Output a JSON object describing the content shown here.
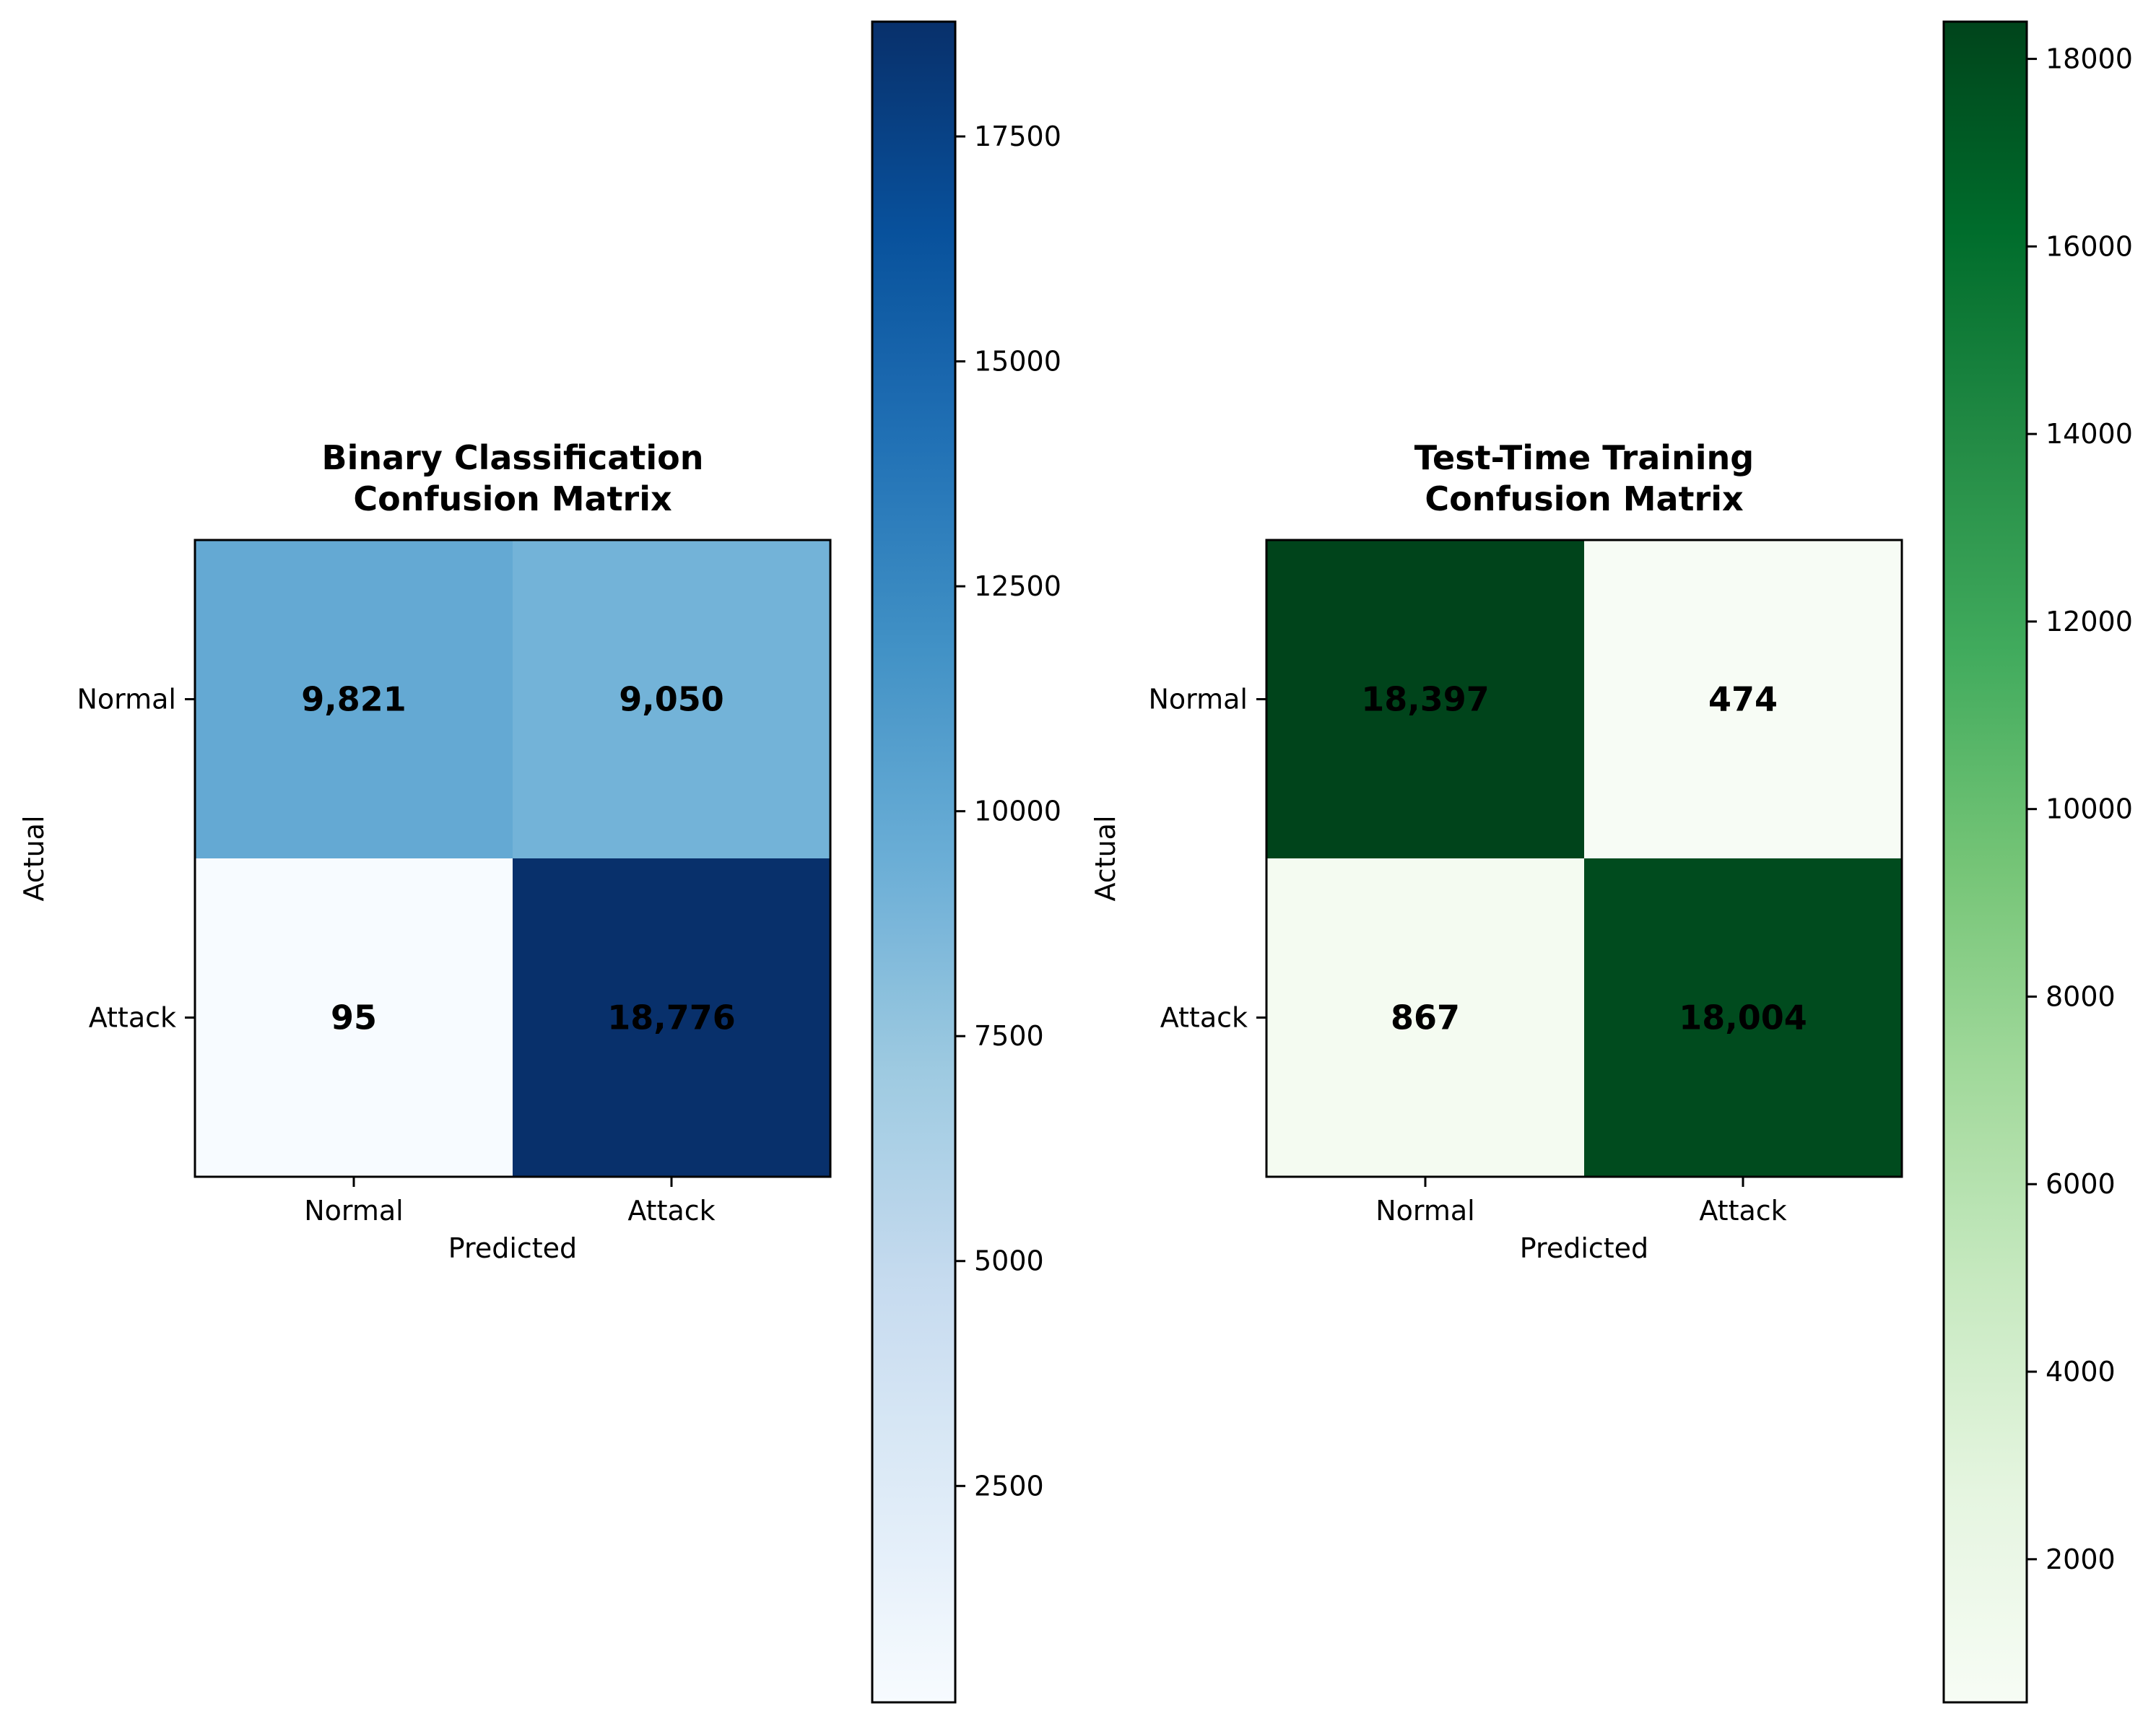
{
  "chart_data": [
    {
      "type": "heatmap",
      "title": "Binary Classification\nConfusion Matrix",
      "xlabel": "Predicted",
      "ylabel": "Actual",
      "x_categories": [
        "Normal",
        "Attack"
      ],
      "y_categories": [
        "Normal",
        "Attack"
      ],
      "values": [
        [
          9821,
          9050
        ],
        [
          95,
          18776
        ]
      ],
      "value_labels": [
        [
          "9,821",
          "9,050"
        ],
        [
          "95",
          "18,776"
        ]
      ],
      "colormap": "Blues",
      "color_low": "#f7fbff",
      "color_high": "#08306b",
      "colorbar_range": [
        95,
        18776
      ],
      "colorbar_ticks": [
        2500,
        5000,
        7500,
        10000,
        12500,
        15000,
        17500
      ]
    },
    {
      "type": "heatmap",
      "title": "Test-Time Training\nConfusion Matrix",
      "xlabel": "Predicted",
      "ylabel": "Actual",
      "x_categories": [
        "Normal",
        "Attack"
      ],
      "y_categories": [
        "Normal",
        "Attack"
      ],
      "values": [
        [
          18397,
          474
        ],
        [
          867,
          18004
        ]
      ],
      "value_labels": [
        [
          "18,397",
          "474"
        ],
        [
          "867",
          "18,004"
        ]
      ],
      "colormap": "Greens",
      "color_low": "#f7fcf5",
      "color_high": "#00441b",
      "colorbar_range": [
        474,
        18397
      ],
      "colorbar_ticks": [
        2000,
        4000,
        6000,
        8000,
        10000,
        12000,
        14000,
        16000,
        18000
      ]
    }
  ]
}
